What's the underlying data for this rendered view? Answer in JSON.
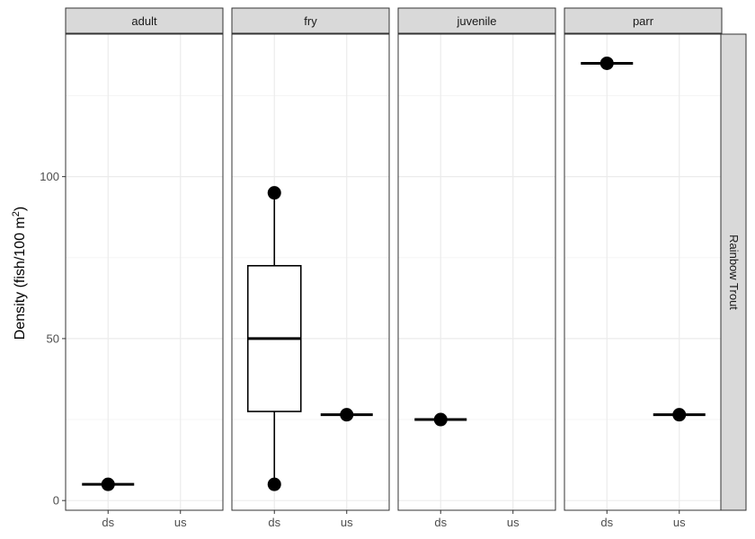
{
  "chart_data": {
    "type": "boxplot",
    "ylabel_prefix": "Density (fish/100 m",
    "ylabel_sup": "2",
    "ylabel_suffix": ")",
    "ylim": [
      -3,
      144
    ],
    "yticks": [
      0,
      50,
      100
    ],
    "categories": [
      "ds",
      "us"
    ],
    "row_strip": "Rainbow Trout",
    "panels": [
      {
        "name": "adult",
        "groups": [
          {
            "x": "ds",
            "points": [
              5
            ]
          }
        ]
      },
      {
        "name": "fry",
        "groups": [
          {
            "x": "ds",
            "box": {
              "min": 5,
              "q1": 27.5,
              "median": 50,
              "q3": 72.5,
              "max": 95
            },
            "points": [
              5,
              95
            ]
          },
          {
            "x": "us",
            "points": [
              26.5
            ]
          }
        ]
      },
      {
        "name": "juvenile",
        "groups": [
          {
            "x": "ds",
            "points": [
              25
            ]
          }
        ]
      },
      {
        "name": "parr",
        "groups": [
          {
            "x": "ds",
            "points": [
              135
            ]
          },
          {
            "x": "us",
            "points": [
              26.5
            ]
          }
        ]
      }
    ],
    "grid": true,
    "colors": {
      "strip_fill": "#d9d9d9",
      "strip_border": "#333333",
      "grid_major": "#ebebeb",
      "grid_minor": "#f5f5f5",
      "ink": "#000000"
    }
  }
}
